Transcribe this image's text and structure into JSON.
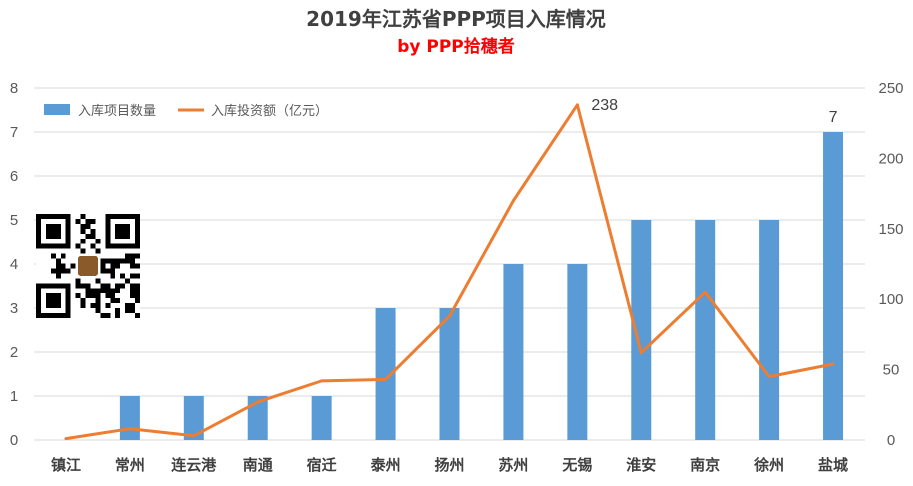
{
  "chart_data": {
    "type": "bar+line",
    "title": "2019年江苏省PPP项目入库情况",
    "subtitle": "by PPP拾穗者",
    "categories": [
      "镇江",
      "常州",
      "连云港",
      "南通",
      "宿迁",
      "泰州",
      "扬州",
      "苏州",
      "无锡",
      "淮安",
      "南京",
      "徐州",
      "盐城"
    ],
    "series": [
      {
        "name": "入库项目数量",
        "type": "bar",
        "axis": "left",
        "color": "#5b9bd5",
        "values": [
          0,
          1,
          1,
          1,
          1,
          3,
          3,
          4,
          4,
          5,
          5,
          5,
          7
        ]
      },
      {
        "name": "入库投资额（亿元）",
        "type": "line",
        "axis": "right",
        "color": "#ed7d31",
        "values": [
          1,
          8,
          3,
          27,
          42,
          43,
          88,
          170,
          238,
          62,
          105,
          45,
          54
        ]
      }
    ],
    "y_left": {
      "min": 0,
      "max": 8,
      "ticks": [
        0,
        1,
        2,
        3,
        4,
        5,
        6,
        7,
        8
      ]
    },
    "y_right": {
      "min": 0,
      "max": 250,
      "ticks": [
        0,
        50,
        100,
        150,
        200,
        250
      ]
    },
    "data_labels": [
      {
        "series": "入库投资额（亿元）",
        "category": "无锡",
        "text": "238"
      },
      {
        "series": "入库项目数量",
        "category": "盐城",
        "text": "7"
      }
    ],
    "grid": true,
    "legend_position": "top-left"
  },
  "decor": {
    "qr_code": "qr-code-icon"
  }
}
